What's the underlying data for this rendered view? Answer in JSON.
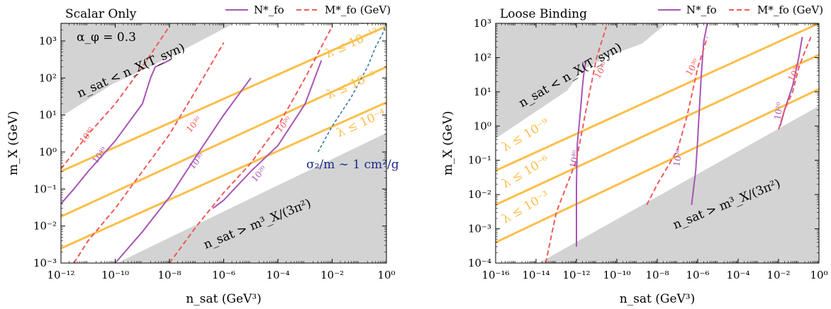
{
  "chart_data": [
    {
      "type": "line",
      "title": "Scalar Only",
      "xlabel": "n_sat (GeV³)",
      "ylabel": "m_X (GeV)",
      "xscale": "log",
      "yscale": "log",
      "xlim": [
        1e-12,
        1
      ],
      "ylim": [
        0.001,
        3000
      ],
      "xticks": [
        1e-12,
        1e-10,
        1e-08,
        1e-06,
        0.0001,
        0.01,
        1
      ],
      "xticklabels": [
        "10⁻¹²",
        "10⁻¹⁰",
        "10⁻⁸",
        "10⁻⁶",
        "10⁻⁴",
        "10⁻²",
        "10⁰"
      ],
      "yticks": [
        0.001,
        0.01,
        0.1,
        1,
        10,
        100,
        1000
      ],
      "yticklabels": [
        "10⁻³",
        "10⁻²",
        "10⁻¹",
        "10⁰",
        "10¹",
        "10²",
        "10³"
      ],
      "legend": {
        "position": "top",
        "entries": [
          {
            "label": "N*_fo",
            "style": "solid",
            "color": "#a855b5"
          },
          {
            "label": "M*_fo (GeV)",
            "style": "dashed",
            "color": "#f05a5a"
          }
        ]
      },
      "annotations": [
        {
          "text": "α_φ = 0.3"
        },
        {
          "text": "n_sat < n_X(T_syn)"
        },
        {
          "text": "n_sat > m³_X/(3π²)"
        },
        {
          "text": "σ₂/m ∼ 1 cm²/g"
        },
        {
          "text": "λ ≤ 10⁻¹²"
        },
        {
          "text": "λ ≤ 10⁻⁸"
        },
        {
          "text": "λ ≤ 10⁻⁴"
        }
      ],
      "contour_labels": [
        "10⁴⁰",
        "10⁴⁰",
        "10³⁰",
        "10³⁰",
        "10²⁰",
        "10²⁰"
      ],
      "series": [
        {
          "name": "λ ≤ 10⁻¹²",
          "kind": "orange",
          "x": [
            1e-12,
            1
          ],
          "y": [
            0.3,
            2500
          ]
        },
        {
          "name": "λ ≤ 10⁻⁸",
          "kind": "orange",
          "x": [
            1e-12,
            1
          ],
          "y": [
            0.018,
            200
          ]
        },
        {
          "name": "λ ≤ 10⁻⁴",
          "kind": "orange",
          "x": [
            1e-12,
            1
          ],
          "y": [
            0.0025,
            22
          ]
        },
        {
          "name": "",
          "kind": "purple",
          "x": [
            1e-12,
            3e-12,
            1e-11,
            1e-10,
            1e-09,
            2e-09,
            3e-09,
            1e-08
          ],
          "y": [
            0.04,
            0.1,
            0.3,
            2,
            20,
            100,
            200,
            300
          ]
        },
        {
          "name": "",
          "kind": "purple",
          "x": [
            1e-10,
            1e-09,
            1e-08,
            1e-07,
            1e-06,
            1e-05
          ],
          "y": [
            0.001,
            0.007,
            0.06,
            0.8,
            10,
            100
          ]
        },
        {
          "name": "",
          "kind": "purple",
          "x": [
            4e-07,
            1e-06,
            1e-05,
            0.0001,
            0.001,
            0.004
          ],
          "y": [
            0.03,
            0.05,
            0.3,
            1.5,
            20,
            300
          ]
        },
        {
          "name": "",
          "kind": "red",
          "x": [
            1e-12,
            1e-11,
            1e-10,
            1e-09,
            1e-08
          ],
          "y": [
            0.35,
            3,
            20,
            200,
            2500
          ]
        },
        {
          "name": "",
          "kind": "red",
          "x": [
            3e-12,
            1e-11,
            1e-10,
            1e-09,
            1e-08,
            1e-07,
            1e-06
          ],
          "y": [
            0.001,
            0.004,
            0.03,
            0.3,
            3,
            50,
            900
          ]
        },
        {
          "name": "",
          "kind": "red",
          "x": [
            1e-08,
            1e-07,
            1e-06,
            1e-05,
            0.0001,
            0.001,
            0.01
          ],
          "y": [
            0.001,
            0.01,
            0.08,
            0.5,
            5,
            100,
            2500
          ]
        },
        {
          "name": "",
          "kind": "blue",
          "x": [
            0.003,
            0.01,
            0.05,
            0.2,
            0.4,
            0.7,
            1.0,
            0.35,
            0.12
          ],
          "y": [
            1.0,
            5,
            30,
            200,
            700,
            1500,
            3000,
            3000,
            3000
          ]
        }
      ]
    },
    {
      "type": "line",
      "title": "Loose Binding",
      "xlabel": "n_sat (GeV³)",
      "ylabel": "m_X (GeV)",
      "xscale": "log",
      "yscale": "log",
      "xlim": [
        1e-16,
        1
      ],
      "ylim": [
        0.0001,
        1000
      ],
      "xticks": [
        1e-16,
        1e-14,
        1e-12,
        1e-10,
        1e-08,
        1e-06,
        0.0001,
        0.01,
        1
      ],
      "xticklabels": [
        "10⁻¹⁶",
        "10⁻¹⁴",
        "10⁻¹²",
        "10⁻¹⁰",
        "10⁻⁸",
        "10⁻⁶",
        "10⁻⁴",
        "10⁻²",
        "10⁰"
      ],
      "yticks": [
        0.0001,
        0.001,
        0.01,
        0.1,
        1,
        10,
        100,
        1000
      ],
      "yticklabels": [
        "10⁻⁴",
        "10⁻³",
        "10⁻²",
        "10⁻¹",
        "10⁰",
        "10¹",
        "10²",
        "10³"
      ],
      "legend": {
        "position": "top",
        "entries": [
          {
            "label": "N*_fo",
            "style": "solid",
            "color": "#a855b5"
          },
          {
            "label": "M*_fo (GeV)",
            "style": "dashed",
            "color": "#f05a5a"
          }
        ]
      },
      "annotations": [
        {
          "text": "n_sat < n_X(T_syn)"
        },
        {
          "text": "n_sat > m³_X/(3π²)"
        },
        {
          "text": "λ ≤ 10⁻⁹"
        },
        {
          "text": "λ ≤ 10⁻⁶"
        },
        {
          "text": "λ ≤ 10⁻³"
        }
      ],
      "contour_labels": [
        "10⁴⁰",
        "10⁴⁰",
        "10³⁰",
        "10³⁰",
        "10²⁰",
        "10²⁰"
      ],
      "series": [
        {
          "name": "λ ≤ 10⁻⁹",
          "kind": "orange",
          "x": [
            1e-16,
            1
          ],
          "y": [
            0.05,
            1000
          ]
        },
        {
          "name": "λ ≤ 10⁻⁶",
          "kind": "orange",
          "x": [
            1e-16,
            1
          ],
          "y": [
            0.005,
            120
          ]
        },
        {
          "name": "λ ≤ 10⁻³",
          "kind": "orange",
          "x": [
            1e-16,
            1
          ],
          "y": [
            0.0004,
            12
          ]
        },
        {
          "name": "",
          "kind": "purple",
          "x": [
            1e-12,
            1e-12,
            1.1e-12,
            1.5e-12,
            2e-12,
            2.5e-12,
            3e-12
          ],
          "y": [
            0.0003,
            0.02,
            0.3,
            2,
            15,
            50,
            80
          ]
        },
        {
          "name": "",
          "kind": "purple",
          "x": [
            5e-07,
            8e-07,
            1e-06,
            1.2e-06,
            1.5e-06,
            2e-06,
            3e-06
          ],
          "y": [
            0.005,
            0.05,
            0.4,
            3,
            30,
            300,
            1000
          ]
        },
        {
          "name": "",
          "kind": "purple",
          "x": [
            0.012,
            0.02,
            0.05,
            0.1,
            0.15
          ],
          "y": [
            1,
            3,
            15,
            100,
            400
          ]
        },
        {
          "name": "",
          "kind": "red",
          "x": [
            3e-14,
            1e-13,
            1e-12,
            3e-12,
            1e-11,
            3e-11
          ],
          "y": [
            0.0001,
            0.003,
            0.1,
            3,
            100,
            800
          ]
        },
        {
          "name": "",
          "kind": "red",
          "x": [
            3e-09,
            1e-08,
            1e-07,
            3e-07,
            1e-06,
            3e-06
          ],
          "y": [
            0.005,
            0.02,
            0.2,
            2,
            50,
            400
          ]
        },
        {
          "name": "",
          "kind": "red",
          "x": [
            0.01,
            0.02,
            0.05,
            0.1,
            0.2,
            0.4
          ],
          "y": [
            0.8,
            3,
            10,
            50,
            150,
            400
          ]
        }
      ]
    }
  ]
}
